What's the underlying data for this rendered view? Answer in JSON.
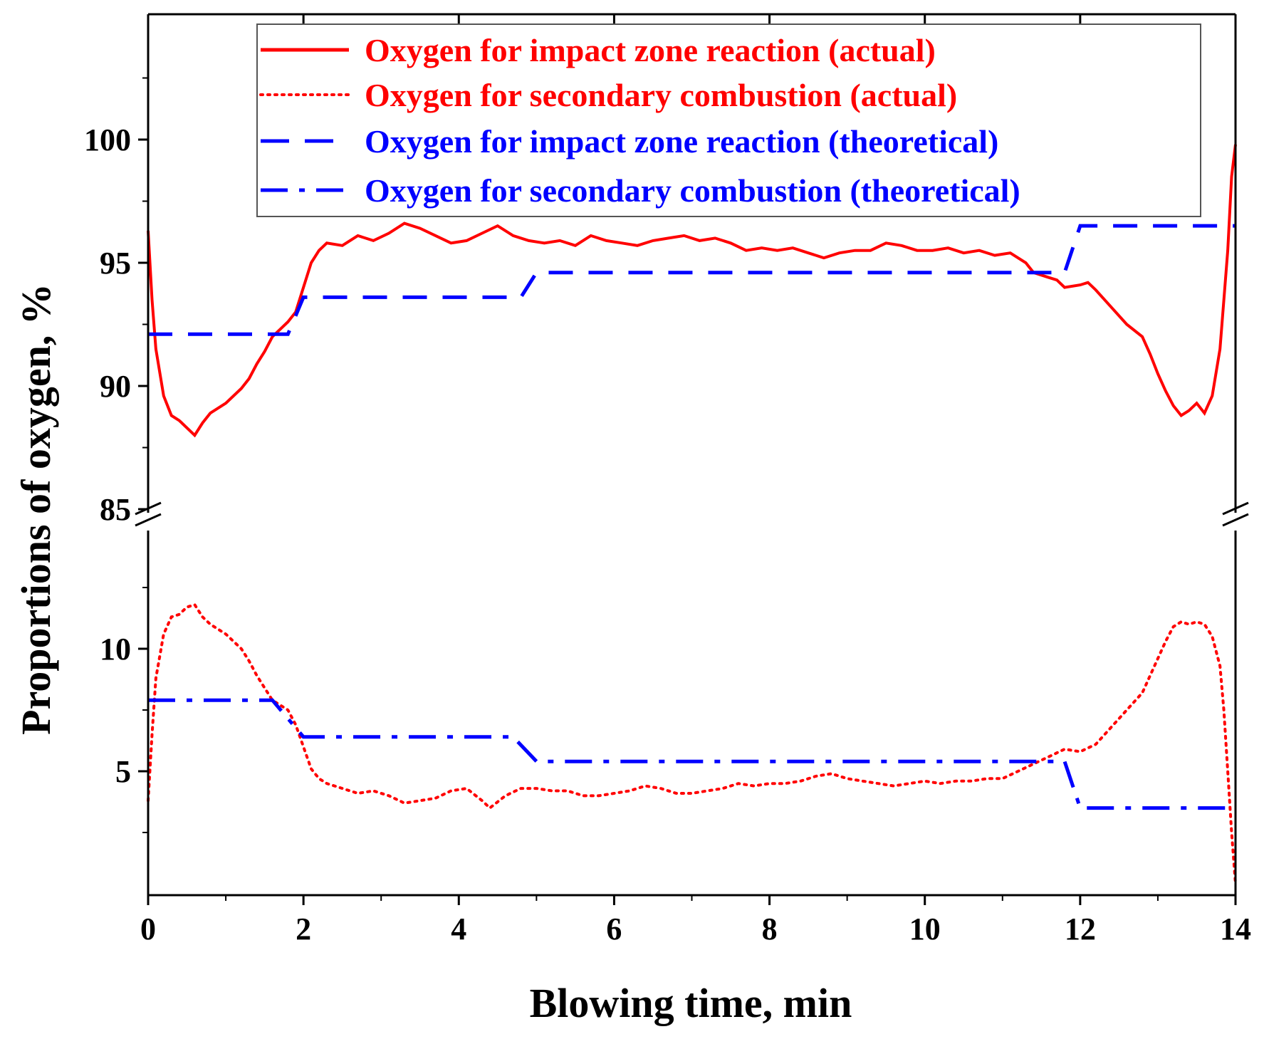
{
  "chart_data": {
    "type": "line",
    "xlabel": "Blowing time, min",
    "ylabel": "Proportions of oxygen, %",
    "xlim": [
      0,
      14
    ],
    "x_ticks": [
      "0",
      "2",
      "4",
      "6",
      "8",
      "10",
      "12",
      "14"
    ],
    "y_axis_break": {
      "lower_range": [
        0,
        15
      ],
      "upper_range": [
        85,
        105
      ]
    },
    "y_ticks_upper": [
      "85",
      "90",
      "95",
      "100"
    ],
    "y_ticks_lower": [
      "5",
      "10"
    ],
    "legend_position": "top-right",
    "colors": {
      "actual": "#ff0000",
      "theoretical": "#0000ff",
      "axis": "#000000"
    },
    "series": [
      {
        "name": "Oxygen for impact zone reaction (actual)",
        "style": "solid",
        "color": "#ff0000",
        "panel": "upper",
        "points": [
          [
            0,
            96.3
          ],
          [
            0.05,
            93.5
          ],
          [
            0.1,
            91.5
          ],
          [
            0.2,
            89.6
          ],
          [
            0.3,
            88.8
          ],
          [
            0.4,
            88.6
          ],
          [
            0.5,
            88.3
          ],
          [
            0.6,
            88.0
          ],
          [
            0.7,
            88.5
          ],
          [
            0.8,
            88.9
          ],
          [
            1.0,
            89.3
          ],
          [
            1.2,
            89.9
          ],
          [
            1.3,
            90.3
          ],
          [
            1.4,
            90.9
          ],
          [
            1.5,
            91.4
          ],
          [
            1.6,
            92.0
          ],
          [
            1.7,
            92.3
          ],
          [
            1.8,
            92.6
          ],
          [
            1.9,
            93.0
          ],
          [
            2.0,
            94.0
          ],
          [
            2.1,
            95.0
          ],
          [
            2.2,
            95.5
          ],
          [
            2.3,
            95.8
          ],
          [
            2.5,
            95.7
          ],
          [
            2.7,
            96.1
          ],
          [
            2.9,
            95.9
          ],
          [
            3.1,
            96.2
          ],
          [
            3.3,
            96.6
          ],
          [
            3.5,
            96.4
          ],
          [
            3.7,
            96.1
          ],
          [
            3.9,
            95.8
          ],
          [
            4.1,
            95.9
          ],
          [
            4.3,
            96.2
          ],
          [
            4.5,
            96.5
          ],
          [
            4.7,
            96.1
          ],
          [
            4.9,
            95.9
          ],
          [
            5.1,
            95.8
          ],
          [
            5.3,
            95.9
          ],
          [
            5.5,
            95.7
          ],
          [
            5.7,
            96.1
          ],
          [
            5.9,
            95.9
          ],
          [
            6.1,
            95.8
          ],
          [
            6.3,
            95.7
          ],
          [
            6.5,
            95.9
          ],
          [
            6.7,
            96.0
          ],
          [
            6.9,
            96.1
          ],
          [
            7.1,
            95.9
          ],
          [
            7.3,
            96.0
          ],
          [
            7.5,
            95.8
          ],
          [
            7.7,
            95.5
          ],
          [
            7.9,
            95.6
          ],
          [
            8.1,
            95.5
          ],
          [
            8.3,
            95.6
          ],
          [
            8.5,
            95.4
          ],
          [
            8.7,
            95.2
          ],
          [
            8.9,
            95.4
          ],
          [
            9.1,
            95.5
          ],
          [
            9.3,
            95.5
          ],
          [
            9.5,
            95.8
          ],
          [
            9.7,
            95.7
          ],
          [
            9.9,
            95.5
          ],
          [
            10.1,
            95.5
          ],
          [
            10.3,
            95.6
          ],
          [
            10.5,
            95.4
          ],
          [
            10.7,
            95.5
          ],
          [
            10.9,
            95.3
          ],
          [
            11.1,
            95.4
          ],
          [
            11.3,
            95.0
          ],
          [
            11.4,
            94.6
          ],
          [
            11.5,
            94.5
          ],
          [
            11.6,
            94.4
          ],
          [
            11.7,
            94.3
          ],
          [
            11.8,
            94.0
          ],
          [
            12.0,
            94.1
          ],
          [
            12.1,
            94.2
          ],
          [
            12.2,
            93.9
          ],
          [
            12.4,
            93.2
          ],
          [
            12.6,
            92.5
          ],
          [
            12.8,
            92.0
          ],
          [
            12.9,
            91.3
          ],
          [
            13.0,
            90.5
          ],
          [
            13.1,
            89.8
          ],
          [
            13.2,
            89.2
          ],
          [
            13.3,
            88.8
          ],
          [
            13.4,
            89.0
          ],
          [
            13.5,
            89.3
          ],
          [
            13.6,
            88.9
          ],
          [
            13.7,
            89.6
          ],
          [
            13.8,
            91.5
          ],
          [
            13.9,
            95.5
          ],
          [
            13.95,
            98.5
          ],
          [
            14.0,
            99.8
          ]
        ]
      },
      {
        "name": "Oxygen for secondary combustion (actual)",
        "style": "dotted",
        "color": "#ff0000",
        "panel": "lower",
        "points": [
          [
            0,
            3.8
          ],
          [
            0.05,
            6.5
          ],
          [
            0.1,
            8.8
          ],
          [
            0.2,
            10.6
          ],
          [
            0.3,
            11.3
          ],
          [
            0.4,
            11.4
          ],
          [
            0.5,
            11.7
          ],
          [
            0.6,
            11.8
          ],
          [
            0.7,
            11.3
          ],
          [
            0.8,
            11.0
          ],
          [
            1.0,
            10.6
          ],
          [
            1.2,
            10.0
          ],
          [
            1.3,
            9.5
          ],
          [
            1.4,
            8.9
          ],
          [
            1.5,
            8.4
          ],
          [
            1.6,
            7.9
          ],
          [
            1.7,
            7.7
          ],
          [
            1.8,
            7.5
          ],
          [
            1.9,
            6.9
          ],
          [
            2.0,
            6.0
          ],
          [
            2.1,
            5.1
          ],
          [
            2.2,
            4.7
          ],
          [
            2.3,
            4.5
          ],
          [
            2.5,
            4.3
          ],
          [
            2.7,
            4.1
          ],
          [
            2.9,
            4.2
          ],
          [
            3.1,
            4.0
          ],
          [
            3.3,
            3.7
          ],
          [
            3.5,
            3.8
          ],
          [
            3.7,
            3.9
          ],
          [
            3.9,
            4.2
          ],
          [
            4.1,
            4.3
          ],
          [
            4.3,
            3.8
          ],
          [
            4.4,
            3.5
          ],
          [
            4.6,
            4.0
          ],
          [
            4.8,
            4.3
          ],
          [
            5.0,
            4.3
          ],
          [
            5.2,
            4.2
          ],
          [
            5.4,
            4.2
          ],
          [
            5.6,
            4.0
          ],
          [
            5.8,
            4.0
          ],
          [
            6.0,
            4.1
          ],
          [
            6.2,
            4.2
          ],
          [
            6.4,
            4.4
          ],
          [
            6.6,
            4.3
          ],
          [
            6.8,
            4.1
          ],
          [
            7.0,
            4.1
          ],
          [
            7.2,
            4.2
          ],
          [
            7.4,
            4.3
          ],
          [
            7.6,
            4.5
          ],
          [
            7.8,
            4.4
          ],
          [
            8.0,
            4.5
          ],
          [
            8.2,
            4.5
          ],
          [
            8.4,
            4.6
          ],
          [
            8.6,
            4.8
          ],
          [
            8.8,
            4.9
          ],
          [
            9.0,
            4.7
          ],
          [
            9.2,
            4.6
          ],
          [
            9.4,
            4.5
          ],
          [
            9.6,
            4.4
          ],
          [
            9.8,
            4.5
          ],
          [
            10.0,
            4.6
          ],
          [
            10.2,
            4.5
          ],
          [
            10.4,
            4.6
          ],
          [
            10.6,
            4.6
          ],
          [
            10.8,
            4.7
          ],
          [
            11.0,
            4.7
          ],
          [
            11.2,
            5.0
          ],
          [
            11.4,
            5.3
          ],
          [
            11.6,
            5.6
          ],
          [
            11.8,
            5.9
          ],
          [
            12.0,
            5.8
          ],
          [
            12.2,
            6.1
          ],
          [
            12.4,
            6.8
          ],
          [
            12.6,
            7.5
          ],
          [
            12.8,
            8.2
          ],
          [
            12.9,
            8.9
          ],
          [
            13.0,
            9.6
          ],
          [
            13.1,
            10.3
          ],
          [
            13.2,
            10.9
          ],
          [
            13.3,
            11.1
          ],
          [
            13.4,
            11.0
          ],
          [
            13.5,
            11.1
          ],
          [
            13.6,
            11.0
          ],
          [
            13.7,
            10.5
          ],
          [
            13.8,
            9.3
          ],
          [
            13.85,
            7.5
          ],
          [
            13.9,
            5.0
          ],
          [
            13.95,
            2.5
          ],
          [
            14.0,
            0.4
          ]
        ]
      },
      {
        "name": "Oxygen for impact zone reaction (theoretical)",
        "style": "dashed",
        "color": "#0000ff",
        "panel": "upper",
        "points": [
          [
            0,
            92.1
          ],
          [
            1.8,
            92.1
          ],
          [
            2.0,
            93.6
          ],
          [
            4.8,
            93.6
          ],
          [
            5.0,
            94.6
          ],
          [
            11.8,
            94.6
          ],
          [
            12.0,
            96.5
          ],
          [
            14.0,
            96.5
          ]
        ]
      },
      {
        "name": "Oxygen for secondary combustion (theoretical)",
        "style": "dashdot",
        "color": "#0000ff",
        "panel": "lower",
        "points": [
          [
            0,
            7.9
          ],
          [
            1.6,
            7.9
          ],
          [
            2.0,
            6.4
          ],
          [
            4.7,
            6.4
          ],
          [
            5.0,
            5.4
          ],
          [
            11.8,
            5.4
          ],
          [
            12.0,
            3.5
          ],
          [
            14.0,
            3.5
          ]
        ]
      }
    ]
  }
}
